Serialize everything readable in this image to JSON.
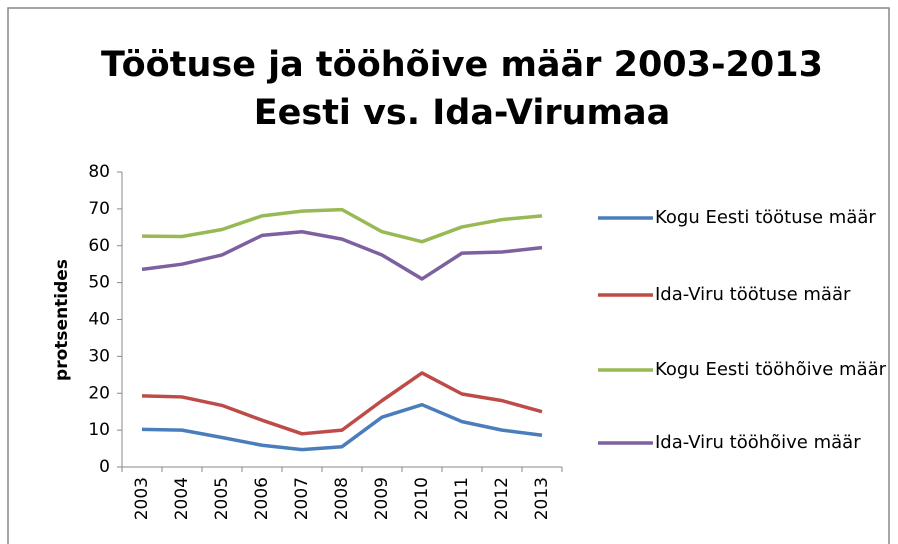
{
  "chart_data": {
    "type": "line",
    "title": "Töötuse ja tööhõive määr 2003-2013",
    "subtitle": "Eesti vs. Ida-Virumaa",
    "y_label": "protsentides",
    "categories": [
      "2003",
      "2004",
      "2005",
      "2006",
      "2007",
      "2008",
      "2009",
      "2010",
      "2011",
      "2012",
      "2013"
    ],
    "series": [
      {
        "name": "Kogu Eesti töötuse määr",
        "color": "#4a7ebb",
        "values": [
          10.2,
          10,
          8,
          5.9,
          4.7,
          5.5,
          13.5,
          16.9,
          12.3,
          10,
          8.6
        ]
      },
      {
        "name": "Ida-Viru töötuse määr",
        "color": "#be4b48",
        "values": [
          19.3,
          19,
          16.7,
          12.7,
          9,
          10,
          18,
          25.5,
          19.8,
          18,
          15
        ]
      },
      {
        "name": "Kogu Eesti tööhõive määr",
        "color": "#98b954",
        "values": [
          62.6,
          62.5,
          64.4,
          68.1,
          69.4,
          69.8,
          63.8,
          61.1,
          65.1,
          67.1,
          68.1
        ]
      },
      {
        "name": "Ida-Viru tööhõive määr",
        "color": "#7d60a0",
        "values": [
          53.6,
          55,
          57.5,
          62.8,
          63.8,
          61.8,
          57.5,
          51,
          58,
          58.3,
          59.5
        ]
      }
    ],
    "ylim": [
      0,
      80
    ],
    "yticks": [
      0,
      10,
      20,
      30,
      40,
      50,
      60,
      70,
      80
    ],
    "grid": false,
    "legend": "right"
  }
}
